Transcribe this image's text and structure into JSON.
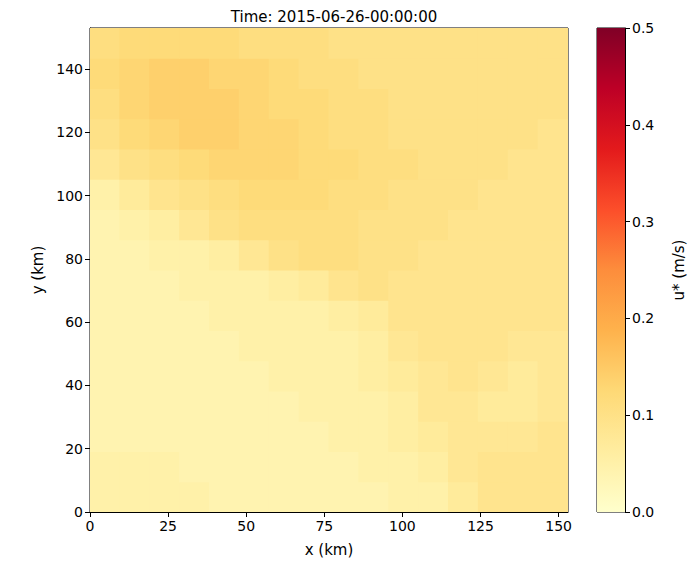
{
  "chart_data": {
    "type": "heatmap",
    "title": "Time: 2015-06-26-00:00:00",
    "x_label": "x (km)",
    "y_label": "y (km)",
    "xlim": [
      0,
      153
    ],
    "ylim": [
      0,
      153
    ],
    "xticks": [
      0,
      25,
      50,
      75,
      100,
      125,
      150
    ],
    "yticks": [
      0,
      20,
      40,
      60,
      80,
      100,
      120,
      140
    ],
    "grid": false,
    "x": [
      4.78,
      14.34,
      23.91,
      33.47,
      43.03,
      52.59,
      62.16,
      71.72,
      81.28,
      90.84,
      100.41,
      109.97,
      119.53,
      129.09,
      138.66,
      148.22
    ],
    "y": [
      4.78,
      14.34,
      23.91,
      33.47,
      43.03,
      52.59,
      62.16,
      71.72,
      81.28,
      90.84,
      100.41,
      109.97,
      119.53,
      129.09,
      138.66,
      148.22
    ],
    "values": [
      [
        0.05,
        0.05,
        0.05,
        0.05,
        0.04,
        0.04,
        0.04,
        0.04,
        0.04,
        0.04,
        0.05,
        0.05,
        0.07,
        0.09,
        0.09,
        0.09
      ],
      [
        0.05,
        0.05,
        0.05,
        0.04,
        0.04,
        0.04,
        0.04,
        0.04,
        0.04,
        0.05,
        0.05,
        0.06,
        0.08,
        0.09,
        0.09,
        0.09
      ],
      [
        0.04,
        0.04,
        0.04,
        0.04,
        0.04,
        0.04,
        0.04,
        0.04,
        0.05,
        0.05,
        0.06,
        0.07,
        0.08,
        0.08,
        0.08,
        0.09
      ],
      [
        0.04,
        0.04,
        0.04,
        0.04,
        0.04,
        0.04,
        0.04,
        0.05,
        0.05,
        0.05,
        0.06,
        0.08,
        0.08,
        0.07,
        0.07,
        0.08
      ],
      [
        0.04,
        0.04,
        0.04,
        0.04,
        0.04,
        0.04,
        0.05,
        0.05,
        0.05,
        0.06,
        0.07,
        0.08,
        0.09,
        0.08,
        0.07,
        0.08
      ],
      [
        0.04,
        0.04,
        0.04,
        0.04,
        0.04,
        0.05,
        0.05,
        0.05,
        0.05,
        0.06,
        0.08,
        0.09,
        0.09,
        0.09,
        0.08,
        0.08
      ],
      [
        0.04,
        0.04,
        0.04,
        0.04,
        0.05,
        0.05,
        0.05,
        0.05,
        0.06,
        0.07,
        0.09,
        0.09,
        0.09,
        0.09,
        0.09,
        0.09
      ],
      [
        0.04,
        0.04,
        0.04,
        0.05,
        0.05,
        0.05,
        0.06,
        0.07,
        0.09,
        0.1,
        0.09,
        0.09,
        0.09,
        0.09,
        0.09,
        0.09
      ],
      [
        0.04,
        0.04,
        0.05,
        0.05,
        0.06,
        0.08,
        0.1,
        0.11,
        0.11,
        0.1,
        0.1,
        0.09,
        0.09,
        0.09,
        0.09,
        0.09
      ],
      [
        0.04,
        0.05,
        0.06,
        0.08,
        0.1,
        0.11,
        0.11,
        0.11,
        0.11,
        0.1,
        0.1,
        0.1,
        0.09,
        0.09,
        0.09,
        0.09
      ],
      [
        0.05,
        0.07,
        0.09,
        0.1,
        0.11,
        0.12,
        0.12,
        0.12,
        0.11,
        0.11,
        0.1,
        0.1,
        0.1,
        0.09,
        0.09,
        0.09
      ],
      [
        0.08,
        0.1,
        0.11,
        0.12,
        0.13,
        0.13,
        0.13,
        0.12,
        0.12,
        0.11,
        0.11,
        0.1,
        0.1,
        0.1,
        0.09,
        0.09
      ],
      [
        0.1,
        0.12,
        0.13,
        0.14,
        0.14,
        0.13,
        0.13,
        0.12,
        0.11,
        0.11,
        0.1,
        0.1,
        0.1,
        0.1,
        0.1,
        0.09
      ],
      [
        0.11,
        0.13,
        0.14,
        0.14,
        0.14,
        0.13,
        0.12,
        0.12,
        0.11,
        0.11,
        0.1,
        0.1,
        0.1,
        0.1,
        0.1,
        0.1
      ],
      [
        0.12,
        0.13,
        0.14,
        0.14,
        0.13,
        0.13,
        0.12,
        0.11,
        0.11,
        0.1,
        0.1,
        0.1,
        0.1,
        0.1,
        0.1,
        0.1
      ],
      [
        0.11,
        0.12,
        0.12,
        0.12,
        0.12,
        0.11,
        0.11,
        0.11,
        0.1,
        0.1,
        0.1,
        0.1,
        0.1,
        0.1,
        0.1,
        0.1
      ]
    ],
    "colorbar_label": "u* (m/s)",
    "colorbar_range": [
      0,
      0.5
    ],
    "colorbar_ticks": [
      {
        "value": 0,
        "label": "0.0"
      },
      {
        "value": 0.1,
        "label": "0.1"
      },
      {
        "value": 0.2,
        "label": "0.2"
      },
      {
        "value": 0.3,
        "label": "0.3"
      },
      {
        "value": 0.4,
        "label": "0.4"
      },
      {
        "value": 0.5,
        "label": "0.5"
      }
    ]
  }
}
